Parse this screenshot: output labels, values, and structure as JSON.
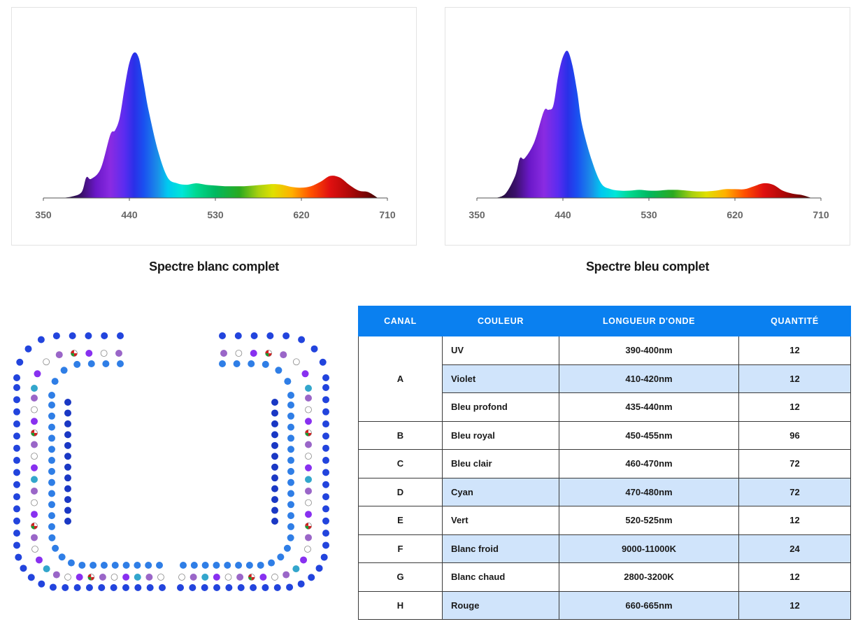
{
  "charts": {
    "left": {
      "caption": "Spectre blanc complet",
      "ticks": [
        "350",
        "440",
        "530",
        "620",
        "710"
      ]
    },
    "right": {
      "caption": "Spectre bleu complet",
      "ticks": [
        "350",
        "440",
        "530",
        "620",
        "710"
      ]
    }
  },
  "chart_data": [
    {
      "type": "area",
      "title": "Spectre blanc complet",
      "xlabel": "",
      "ylabel": "",
      "xlim": [
        350,
        710
      ],
      "x": [
        370,
        380,
        390,
        395,
        400,
        410,
        420,
        425,
        430,
        435,
        440,
        445,
        450,
        455,
        460,
        470,
        480,
        490,
        500,
        510,
        520,
        530,
        540,
        550,
        560,
        570,
        580,
        590,
        600,
        610,
        620,
        630,
        640,
        650,
        660,
        670,
        680,
        690,
        700
      ],
      "values": [
        0.0,
        0.01,
        0.04,
        0.14,
        0.13,
        0.2,
        0.43,
        0.46,
        0.55,
        0.75,
        0.92,
        0.99,
        0.95,
        0.78,
        0.6,
        0.32,
        0.14,
        0.1,
        0.09,
        0.1,
        0.09,
        0.085,
        0.08,
        0.08,
        0.08,
        0.085,
        0.09,
        0.095,
        0.09,
        0.075,
        0.07,
        0.08,
        0.11,
        0.15,
        0.14,
        0.09,
        0.05,
        0.04,
        0.0
      ]
    },
    {
      "type": "area",
      "title": "Spectre bleu complet",
      "xlabel": "",
      "ylabel": "",
      "xlim": [
        350,
        710
      ],
      "x": [
        370,
        380,
        390,
        395,
        400,
        410,
        420,
        425,
        430,
        435,
        440,
        445,
        450,
        455,
        460,
        470,
        480,
        490,
        500,
        510,
        520,
        530,
        540,
        550,
        560,
        570,
        580,
        590,
        600,
        610,
        620,
        630,
        640,
        650,
        660,
        670,
        680,
        690,
        700
      ],
      "values": [
        0.0,
        0.03,
        0.15,
        0.27,
        0.27,
        0.38,
        0.59,
        0.6,
        0.63,
        0.83,
        0.96,
        1.0,
        0.9,
        0.72,
        0.5,
        0.26,
        0.1,
        0.06,
        0.05,
        0.05,
        0.055,
        0.05,
        0.05,
        0.055,
        0.055,
        0.05,
        0.045,
        0.045,
        0.05,
        0.06,
        0.06,
        0.06,
        0.08,
        0.1,
        0.09,
        0.05,
        0.03,
        0.02,
        0.0
      ]
    }
  ],
  "led_colors": {
    "royal": "#2244dd",
    "light": "#2f7ee6",
    "deep": "#1a38c4",
    "cyan": "#33a6cc",
    "violet": "#8830f0",
    "lavender": "#9a66c8",
    "white": "#ffffff",
    "red_green": "#cc2222"
  },
  "table": {
    "headers": [
      "CANAL",
      "COULEUR",
      "LONGUEUR D'ONDE",
      "QUANTITÉ"
    ],
    "rows": [
      {
        "canal": "A",
        "couleur": "UV",
        "onde": "390-400nm",
        "quantite": "12"
      },
      {
        "canal": "",
        "couleur": "Violet",
        "onde": "410-420nm",
        "quantite": "12"
      },
      {
        "canal": "",
        "couleur": "Bleu profond",
        "onde": "435-440nm",
        "quantite": "12"
      },
      {
        "canal": "B",
        "couleur": "Bleu royal",
        "onde": "450-455nm",
        "quantite": "96"
      },
      {
        "canal": "C",
        "couleur": "Bleu clair",
        "onde": "460-470nm",
        "quantite": "72"
      },
      {
        "canal": "D",
        "couleur": "Cyan",
        "onde": "470-480nm",
        "quantite": "72"
      },
      {
        "canal": "E",
        "couleur": "Vert",
        "onde": "520-525nm",
        "quantite": "12"
      },
      {
        "canal": "F",
        "couleur": "Blanc froid",
        "onde": "9000-11000K",
        "quantite": "24"
      },
      {
        "canal": "G",
        "couleur": "Blanc chaud",
        "onde": "2800-3200K",
        "quantite": "12"
      },
      {
        "canal": "H",
        "couleur": "Rouge",
        "onde": "660-665nm",
        "quantite": "12"
      }
    ]
  }
}
